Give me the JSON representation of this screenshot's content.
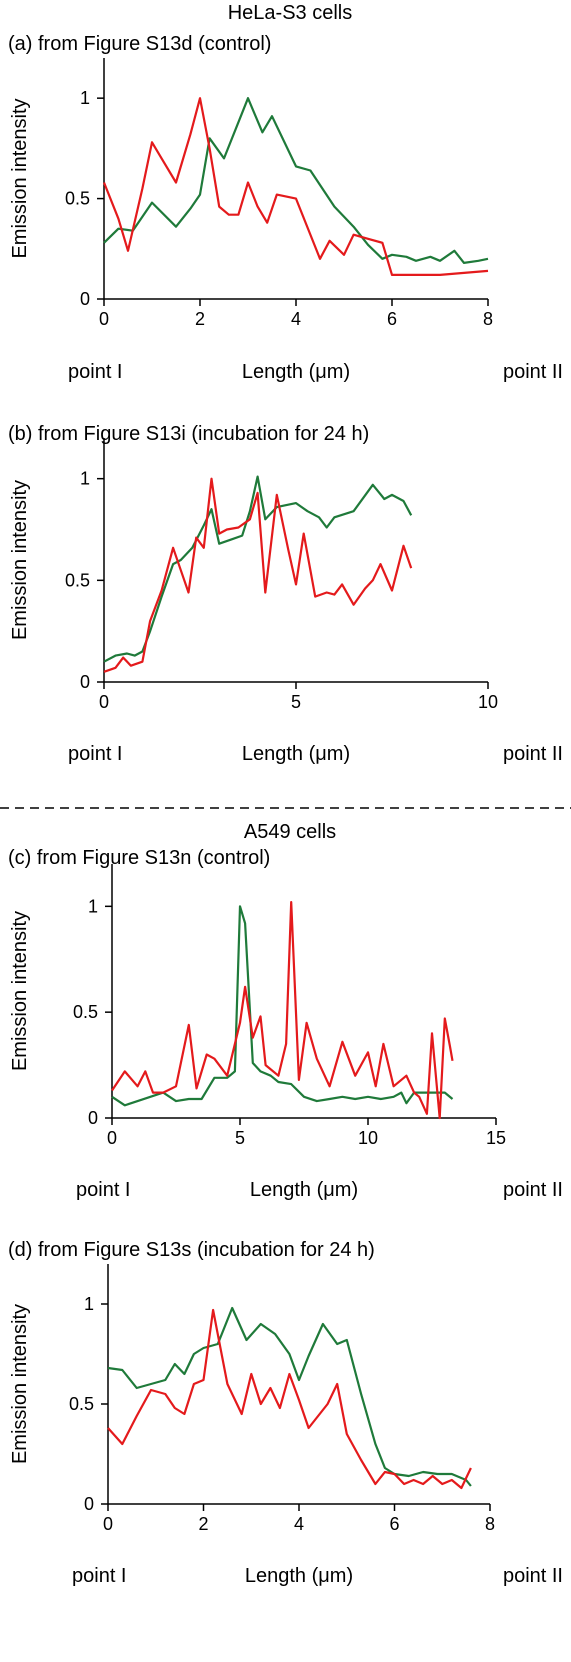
{
  "figure": {
    "sections": [
      {
        "title": "HeLa-S3 cells"
      },
      {
        "title": "A549 cells"
      }
    ]
  },
  "colors": {
    "red_series": "#e41a1c",
    "green_series": "#1f7a3a",
    "axis": "#000000",
    "separator": "#000000"
  },
  "chart_data": [
    {
      "type": "line",
      "panel": "(a) from Figure S13d (control)",
      "xlabel": "Length (μm)",
      "ylabel": "Emission intensity",
      "x_start_label": "point I",
      "x_end_label": "point II",
      "xlim": [
        0,
        8
      ],
      "ylim": [
        0,
        1.2
      ],
      "xticks": [
        0,
        2,
        4,
        6,
        8
      ],
      "yticks": [
        0,
        0.5,
        1
      ],
      "grid": false,
      "legend": "none",
      "series": [
        {
          "color": "red",
          "x": [
            0,
            0.3,
            0.5,
            0.8,
            1.0,
            1.2,
            1.5,
            1.8,
            2.0,
            2.2,
            2.4,
            2.6,
            2.8,
            3.0,
            3.2,
            3.4,
            3.6,
            4.0,
            4.5,
            4.7,
            5.0,
            5.2,
            5.5,
            5.8,
            6.0,
            6.5,
            7.0,
            7.5,
            8.0
          ],
          "y": [
            0.58,
            0.4,
            0.24,
            0.55,
            0.78,
            0.7,
            0.58,
            0.82,
            1.0,
            0.75,
            0.46,
            0.42,
            0.42,
            0.58,
            0.46,
            0.38,
            0.52,
            0.5,
            0.2,
            0.29,
            0.22,
            0.32,
            0.3,
            0.28,
            0.12,
            0.12,
            0.12,
            0.13,
            0.14
          ]
        },
        {
          "color": "green",
          "x": [
            0,
            0.3,
            0.6,
            1.0,
            1.5,
            1.8,
            2.0,
            2.2,
            2.5,
            3.0,
            3.3,
            3.5,
            4.0,
            4.3,
            4.8,
            5.2,
            5.5,
            5.8,
            6.0,
            6.3,
            6.5,
            6.8,
            7.0,
            7.3,
            7.5,
            7.8,
            8.0
          ],
          "y": [
            0.28,
            0.35,
            0.34,
            0.48,
            0.36,
            0.45,
            0.52,
            0.8,
            0.7,
            1.0,
            0.83,
            0.91,
            0.66,
            0.64,
            0.46,
            0.36,
            0.27,
            0.2,
            0.22,
            0.21,
            0.19,
            0.21,
            0.19,
            0.24,
            0.18,
            0.19,
            0.2
          ]
        }
      ]
    },
    {
      "type": "line",
      "panel": "(b) from Figure S13i (incubation for 24 h)",
      "xlabel": "Length (μm)",
      "ylabel": "Emission intensity",
      "x_start_label": "point I",
      "x_end_label": "point II",
      "xlim": [
        0,
        10
      ],
      "ylim": [
        0,
        1.2
      ],
      "xticks": [
        0,
        5,
        10
      ],
      "yticks": [
        0,
        0.5,
        1
      ],
      "grid": false,
      "legend": "none",
      "series": [
        {
          "color": "red",
          "x": [
            0,
            0.3,
            0.5,
            0.7,
            1.0,
            1.2,
            1.5,
            1.8,
            2.0,
            2.2,
            2.4,
            2.6,
            2.8,
            3.0,
            3.2,
            3.5,
            3.8,
            4.0,
            4.2,
            4.5,
            4.8,
            5.0,
            5.2,
            5.5,
            5.8,
            6.0,
            6.2,
            6.5,
            6.8,
            7.0,
            7.2,
            7.5,
            7.8,
            8.0
          ],
          "y": [
            0.05,
            0.07,
            0.12,
            0.08,
            0.1,
            0.3,
            0.45,
            0.66,
            0.55,
            0.44,
            0.71,
            0.66,
            1.0,
            0.73,
            0.75,
            0.76,
            0.8,
            0.93,
            0.44,
            0.92,
            0.65,
            0.48,
            0.73,
            0.42,
            0.44,
            0.43,
            0.48,
            0.38,
            0.46,
            0.5,
            0.58,
            0.45,
            0.67,
            0.56
          ]
        },
        {
          "color": "green",
          "x": [
            0,
            0.3,
            0.6,
            0.8,
            1.0,
            1.2,
            1.5,
            1.8,
            2.0,
            2.3,
            2.6,
            2.8,
            3.0,
            3.3,
            3.6,
            3.8,
            4.0,
            4.2,
            4.5,
            5.0,
            5.3,
            5.6,
            5.8,
            6.0,
            6.5,
            7.0,
            7.3,
            7.5,
            7.8,
            8.0
          ],
          "y": [
            0.1,
            0.13,
            0.14,
            0.13,
            0.15,
            0.25,
            0.42,
            0.58,
            0.6,
            0.66,
            0.77,
            0.85,
            0.68,
            0.7,
            0.72,
            0.84,
            1.01,
            0.8,
            0.86,
            0.88,
            0.84,
            0.81,
            0.76,
            0.81,
            0.84,
            0.97,
            0.9,
            0.92,
            0.89,
            0.82
          ]
        }
      ]
    },
    {
      "type": "line",
      "panel": "(c) from Figure S13n (control)",
      "xlabel": "Length (μm)",
      "ylabel": "Emission intensity",
      "x_start_label": "point I",
      "x_end_label": "point II",
      "xlim": [
        0,
        15
      ],
      "ylim": [
        0,
        1.2
      ],
      "xticks": [
        0,
        5,
        10,
        15
      ],
      "yticks": [
        0,
        0.5,
        1
      ],
      "grid": false,
      "legend": "none",
      "series": [
        {
          "color": "red",
          "x": [
            0,
            0.5,
            1.0,
            1.3,
            1.6,
            2.0,
            2.5,
            3.0,
            3.3,
            3.7,
            4.0,
            4.5,
            5.0,
            5.2,
            5.5,
            5.8,
            6.0,
            6.5,
            6.8,
            7.0,
            7.3,
            7.6,
            8.0,
            8.5,
            9.0,
            9.5,
            10.0,
            10.3,
            10.6,
            11.0,
            11.5,
            11.8,
            12.0,
            12.3,
            12.5,
            12.8,
            13.0,
            13.2,
            13.3
          ],
          "y": [
            0.13,
            0.22,
            0.15,
            0.22,
            0.12,
            0.12,
            0.15,
            0.44,
            0.14,
            0.3,
            0.28,
            0.2,
            0.45,
            0.62,
            0.38,
            0.48,
            0.25,
            0.2,
            0.35,
            1.02,
            0.18,
            0.45,
            0.28,
            0.15,
            0.36,
            0.2,
            0.31,
            0.15,
            0.35,
            0.15,
            0.2,
            0.12,
            0.1,
            0.02,
            0.4,
            0.0,
            0.47,
            0.34,
            0.27
          ]
        },
        {
          "color": "green",
          "x": [
            0,
            0.5,
            1.0,
            1.5,
            2.0,
            2.5,
            3.0,
            3.5,
            4.0,
            4.5,
            4.8,
            5.0,
            5.2,
            5.5,
            5.8,
            6.2,
            6.5,
            7.0,
            7.5,
            8.0,
            8.5,
            9.0,
            9.5,
            10.0,
            10.5,
            11.0,
            11.3,
            11.5,
            11.8,
            12.0,
            12.5,
            13.0,
            13.3
          ],
          "y": [
            0.1,
            0.06,
            0.08,
            0.1,
            0.12,
            0.08,
            0.09,
            0.09,
            0.19,
            0.19,
            0.22,
            1.0,
            0.92,
            0.26,
            0.22,
            0.2,
            0.17,
            0.16,
            0.1,
            0.08,
            0.09,
            0.1,
            0.09,
            0.1,
            0.09,
            0.1,
            0.12,
            0.07,
            0.12,
            0.12,
            0.12,
            0.12,
            0.09
          ]
        }
      ]
    },
    {
      "type": "line",
      "panel": "(d) from Figure S13s (incubation for 24 h)",
      "xlabel": "Length (μm)",
      "ylabel": "Emission intensity",
      "x_start_label": "point I",
      "x_end_label": "point II",
      "xlim": [
        0,
        8
      ],
      "ylim": [
        0,
        1.2
      ],
      "xticks": [
        0,
        2,
        4,
        6,
        8
      ],
      "yticks": [
        0,
        0.5,
        1
      ],
      "grid": false,
      "legend": "none",
      "series": [
        {
          "color": "red",
          "x": [
            0,
            0.3,
            0.6,
            0.9,
            1.2,
            1.4,
            1.6,
            1.8,
            2.0,
            2.2,
            2.5,
            2.8,
            3.0,
            3.2,
            3.4,
            3.6,
            3.8,
            4.0,
            4.2,
            4.4,
            4.6,
            4.8,
            5.0,
            5.3,
            5.6,
            5.8,
            6.0,
            6.2,
            6.4,
            6.6,
            6.8,
            7.0,
            7.2,
            7.4,
            7.6
          ],
          "y": [
            0.38,
            0.3,
            0.44,
            0.57,
            0.55,
            0.48,
            0.45,
            0.6,
            0.62,
            0.97,
            0.6,
            0.45,
            0.65,
            0.5,
            0.58,
            0.48,
            0.65,
            0.52,
            0.38,
            0.44,
            0.5,
            0.6,
            0.35,
            0.22,
            0.1,
            0.16,
            0.15,
            0.1,
            0.12,
            0.1,
            0.14,
            0.1,
            0.12,
            0.08,
            0.18
          ]
        },
        {
          "color": "green",
          "x": [
            0,
            0.3,
            0.6,
            0.9,
            1.2,
            1.4,
            1.6,
            1.8,
            2.0,
            2.3,
            2.6,
            2.9,
            3.2,
            3.5,
            3.8,
            4.0,
            4.2,
            4.5,
            4.8,
            5.0,
            5.3,
            5.6,
            5.8,
            6.0,
            6.3,
            6.6,
            6.9,
            7.2,
            7.5,
            7.6
          ],
          "y": [
            0.68,
            0.67,
            0.58,
            0.6,
            0.62,
            0.7,
            0.65,
            0.75,
            0.78,
            0.8,
            0.98,
            0.82,
            0.9,
            0.85,
            0.75,
            0.62,
            0.74,
            0.9,
            0.8,
            0.82,
            0.55,
            0.3,
            0.18,
            0.15,
            0.14,
            0.16,
            0.15,
            0.15,
            0.12,
            0.09
          ]
        }
      ]
    }
  ]
}
